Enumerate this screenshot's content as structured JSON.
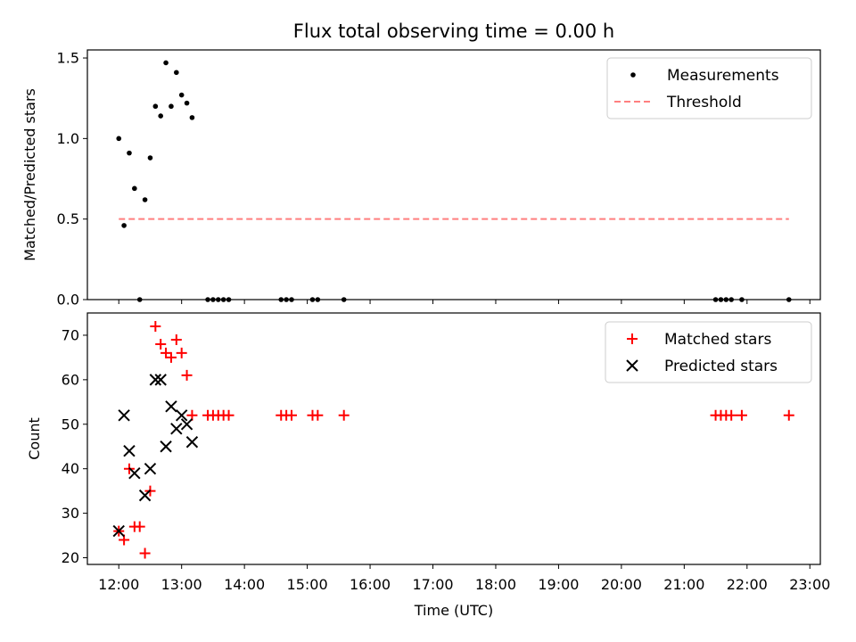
{
  "chart_data": {
    "title": "Flux total observing time = 0.00 h",
    "xlabel": "Time (UTC)",
    "x_tick_labels": [
      "12:00",
      "13:00",
      "14:00",
      "15:00",
      "16:00",
      "17:00",
      "18:00",
      "19:00",
      "20:00",
      "21:00",
      "22:00",
      "23:00"
    ],
    "xlim": [
      "11:30",
      "23:10"
    ],
    "panels": [
      {
        "type": "scatter",
        "ylabel": "Matched/Predicted stars",
        "ylim": [
          0,
          1.55
        ],
        "y_ticks": [
          "0.0",
          "0.5",
          "1.0",
          "1.5"
        ],
        "legend": "top-right",
        "series": [
          {
            "name": "Measurements",
            "marker": "dot",
            "color": "#000000",
            "x": [
              "12:00",
              "12:05",
              "12:10",
              "12:15",
              "12:20",
              "12:25",
              "12:30",
              "12:35",
              "12:40",
              "12:45",
              "12:50",
              "12:55",
              "13:00",
              "13:05",
              "13:10",
              "13:25",
              "13:30",
              "13:35",
              "13:40",
              "13:45",
              "14:35",
              "14:40",
              "14:45",
              "15:05",
              "15:10",
              "15:35",
              "21:30",
              "21:35",
              "21:40",
              "21:45",
              "21:55",
              "22:40"
            ],
            "y": [
              1.0,
              0.46,
              0.91,
              0.69,
              0.0,
              0.62,
              0.88,
              1.2,
              1.14,
              1.47,
              1.2,
              1.41,
              1.27,
              1.22,
              1.13,
              0.0,
              0.0,
              0.0,
              0.0,
              0.0,
              0.0,
              0.0,
              0.0,
              0.0,
              0.0,
              0.0,
              0.0,
              0.0,
              0.0,
              0.0,
              0.0,
              0.0
            ]
          },
          {
            "name": "Threshold",
            "marker": "dashed-line",
            "color": "#ff7f7f",
            "x": [
              "12:00",
              "22:40"
            ],
            "y": [
              0.5,
              0.5
            ]
          }
        ]
      },
      {
        "type": "scatter",
        "ylabel": "Count",
        "ylim": [
          18.5,
          75
        ],
        "y_ticks": [
          "20",
          "30",
          "40",
          "50",
          "60",
          "70"
        ],
        "legend": "top-right",
        "series": [
          {
            "name": "Matched stars",
            "marker": "plus",
            "color": "#ff0000",
            "x": [
              "12:00",
              "12:05",
              "12:10",
              "12:15",
              "12:20",
              "12:25",
              "12:30",
              "12:35",
              "12:40",
              "12:45",
              "12:50",
              "12:55",
              "13:00",
              "13:05",
              "13:10",
              "13:25",
              "13:30",
              "13:35",
              "13:40",
              "13:45",
              "14:35",
              "14:40",
              "14:45",
              "15:05",
              "15:10",
              "15:35",
              "21:30",
              "21:35",
              "21:40",
              "21:45",
              "21:55",
              "22:40"
            ],
            "y": [
              26,
              24,
              40,
              27,
              27,
              21,
              35,
              72,
              68,
              66,
              65,
              69,
              66,
              61,
              52,
              52,
              52,
              52,
              52,
              52,
              52,
              52,
              52,
              52,
              52,
              52,
              52,
              52,
              52,
              52,
              52,
              52
            ]
          },
          {
            "name": "Predicted stars",
            "marker": "x",
            "color": "#000000",
            "x": [
              "12:00",
              "12:05",
              "12:10",
              "12:15",
              "12:25",
              "12:30",
              "12:35",
              "12:40",
              "12:45",
              "12:50",
              "12:55",
              "13:00",
              "13:05",
              "13:10"
            ],
            "y": [
              26,
              52,
              44,
              39,
              34,
              40,
              60,
              60,
              45,
              54,
              49,
              52,
              50,
              46
            ]
          }
        ]
      }
    ]
  }
}
